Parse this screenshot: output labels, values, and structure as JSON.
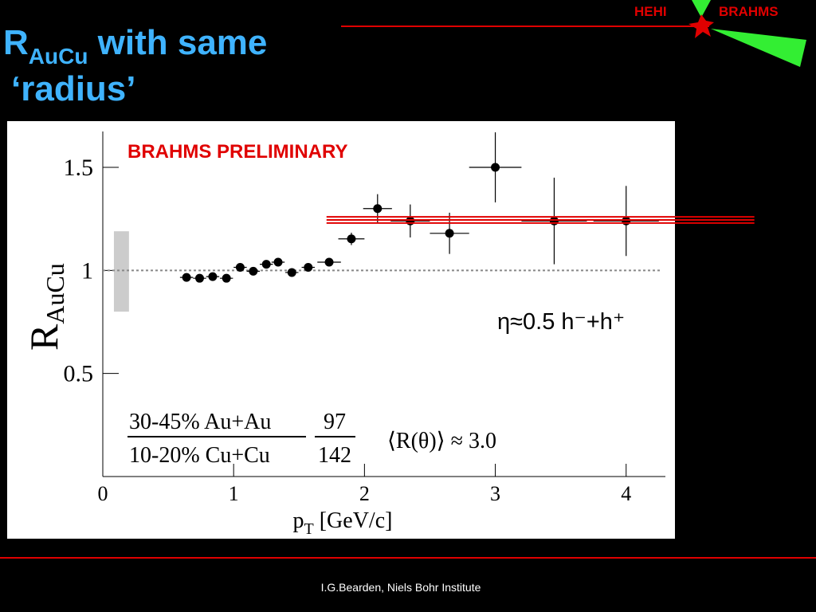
{
  "slide": {
    "title_main": "R",
    "title_sub": "AuCu",
    "title_rest": " with same",
    "title_line2": "‘radius’",
    "logo_left": "HEHI",
    "logo_right": "BRAHMS",
    "footer": "I.G.Bearden, Niels Bohr Institute"
  },
  "chart_data": {
    "type": "scatter",
    "xlabel_main": "p",
    "xlabel_sub": "T",
    "xlabel_rest": " [GeV/c]",
    "ylabel_main": "R",
    "ylabel_sub": "AuCu",
    "annotations": [
      "BRAHMS PRELIMINARY",
      "η≈0.5  h⁻+h⁺",
      "30-45% Au+Au",
      "10-20% Cu+Cu",
      "97",
      "142",
      "⟨R(θ)⟩ ≈ 3.0"
    ],
    "x": [
      0.64,
      0.74,
      0.84,
      0.945,
      1.05,
      1.15,
      1.25,
      1.34,
      1.445,
      1.57,
      1.73,
      1.9,
      2.1,
      2.35,
      2.65,
      3.0,
      3.45,
      4.0
    ],
    "values": [
      0.966,
      0.962,
      0.97,
      0.962,
      1.015,
      0.996,
      1.03,
      1.04,
      0.99,
      1.015,
      1.04,
      1.153,
      1.3,
      1.24,
      1.18,
      1.5,
      1.24,
      1.24
    ],
    "xerr": [
      0.05,
      0.05,
      0.05,
      0.05,
      0.05,
      0.05,
      0.05,
      0.05,
      0.05,
      0.05,
      0.09,
      0.1,
      0.11,
      0.15,
      0.15,
      0.2,
      0.25,
      0.25
    ],
    "yerr": [
      0.01,
      0.01,
      0.01,
      0.01,
      0.015,
      0.01,
      0.015,
      0.02,
      0.02,
      0.02,
      0.02,
      0.03,
      0.07,
      0.08,
      0.1,
      0.17,
      0.21,
      0.17
    ],
    "color": "#000000",
    "fit_lines": [
      1.23,
      1.245,
      1.26
    ],
    "fit_xrange": [
      1.71,
      4.98
    ],
    "fit_color": "#e00000",
    "norm_box_x": [
      0.085,
      0.2
    ],
    "norm_box_y": [
      0.8,
      1.19
    ],
    "norm_color": "#cccccc",
    "reference": 1,
    "xlim": [
      0,
      4.3
    ],
    "ylim": [
      0,
      1.7
    ],
    "xticks": [
      0,
      1,
      2,
      3,
      4
    ],
    "yticks": [
      0.5,
      1,
      1.5
    ]
  }
}
